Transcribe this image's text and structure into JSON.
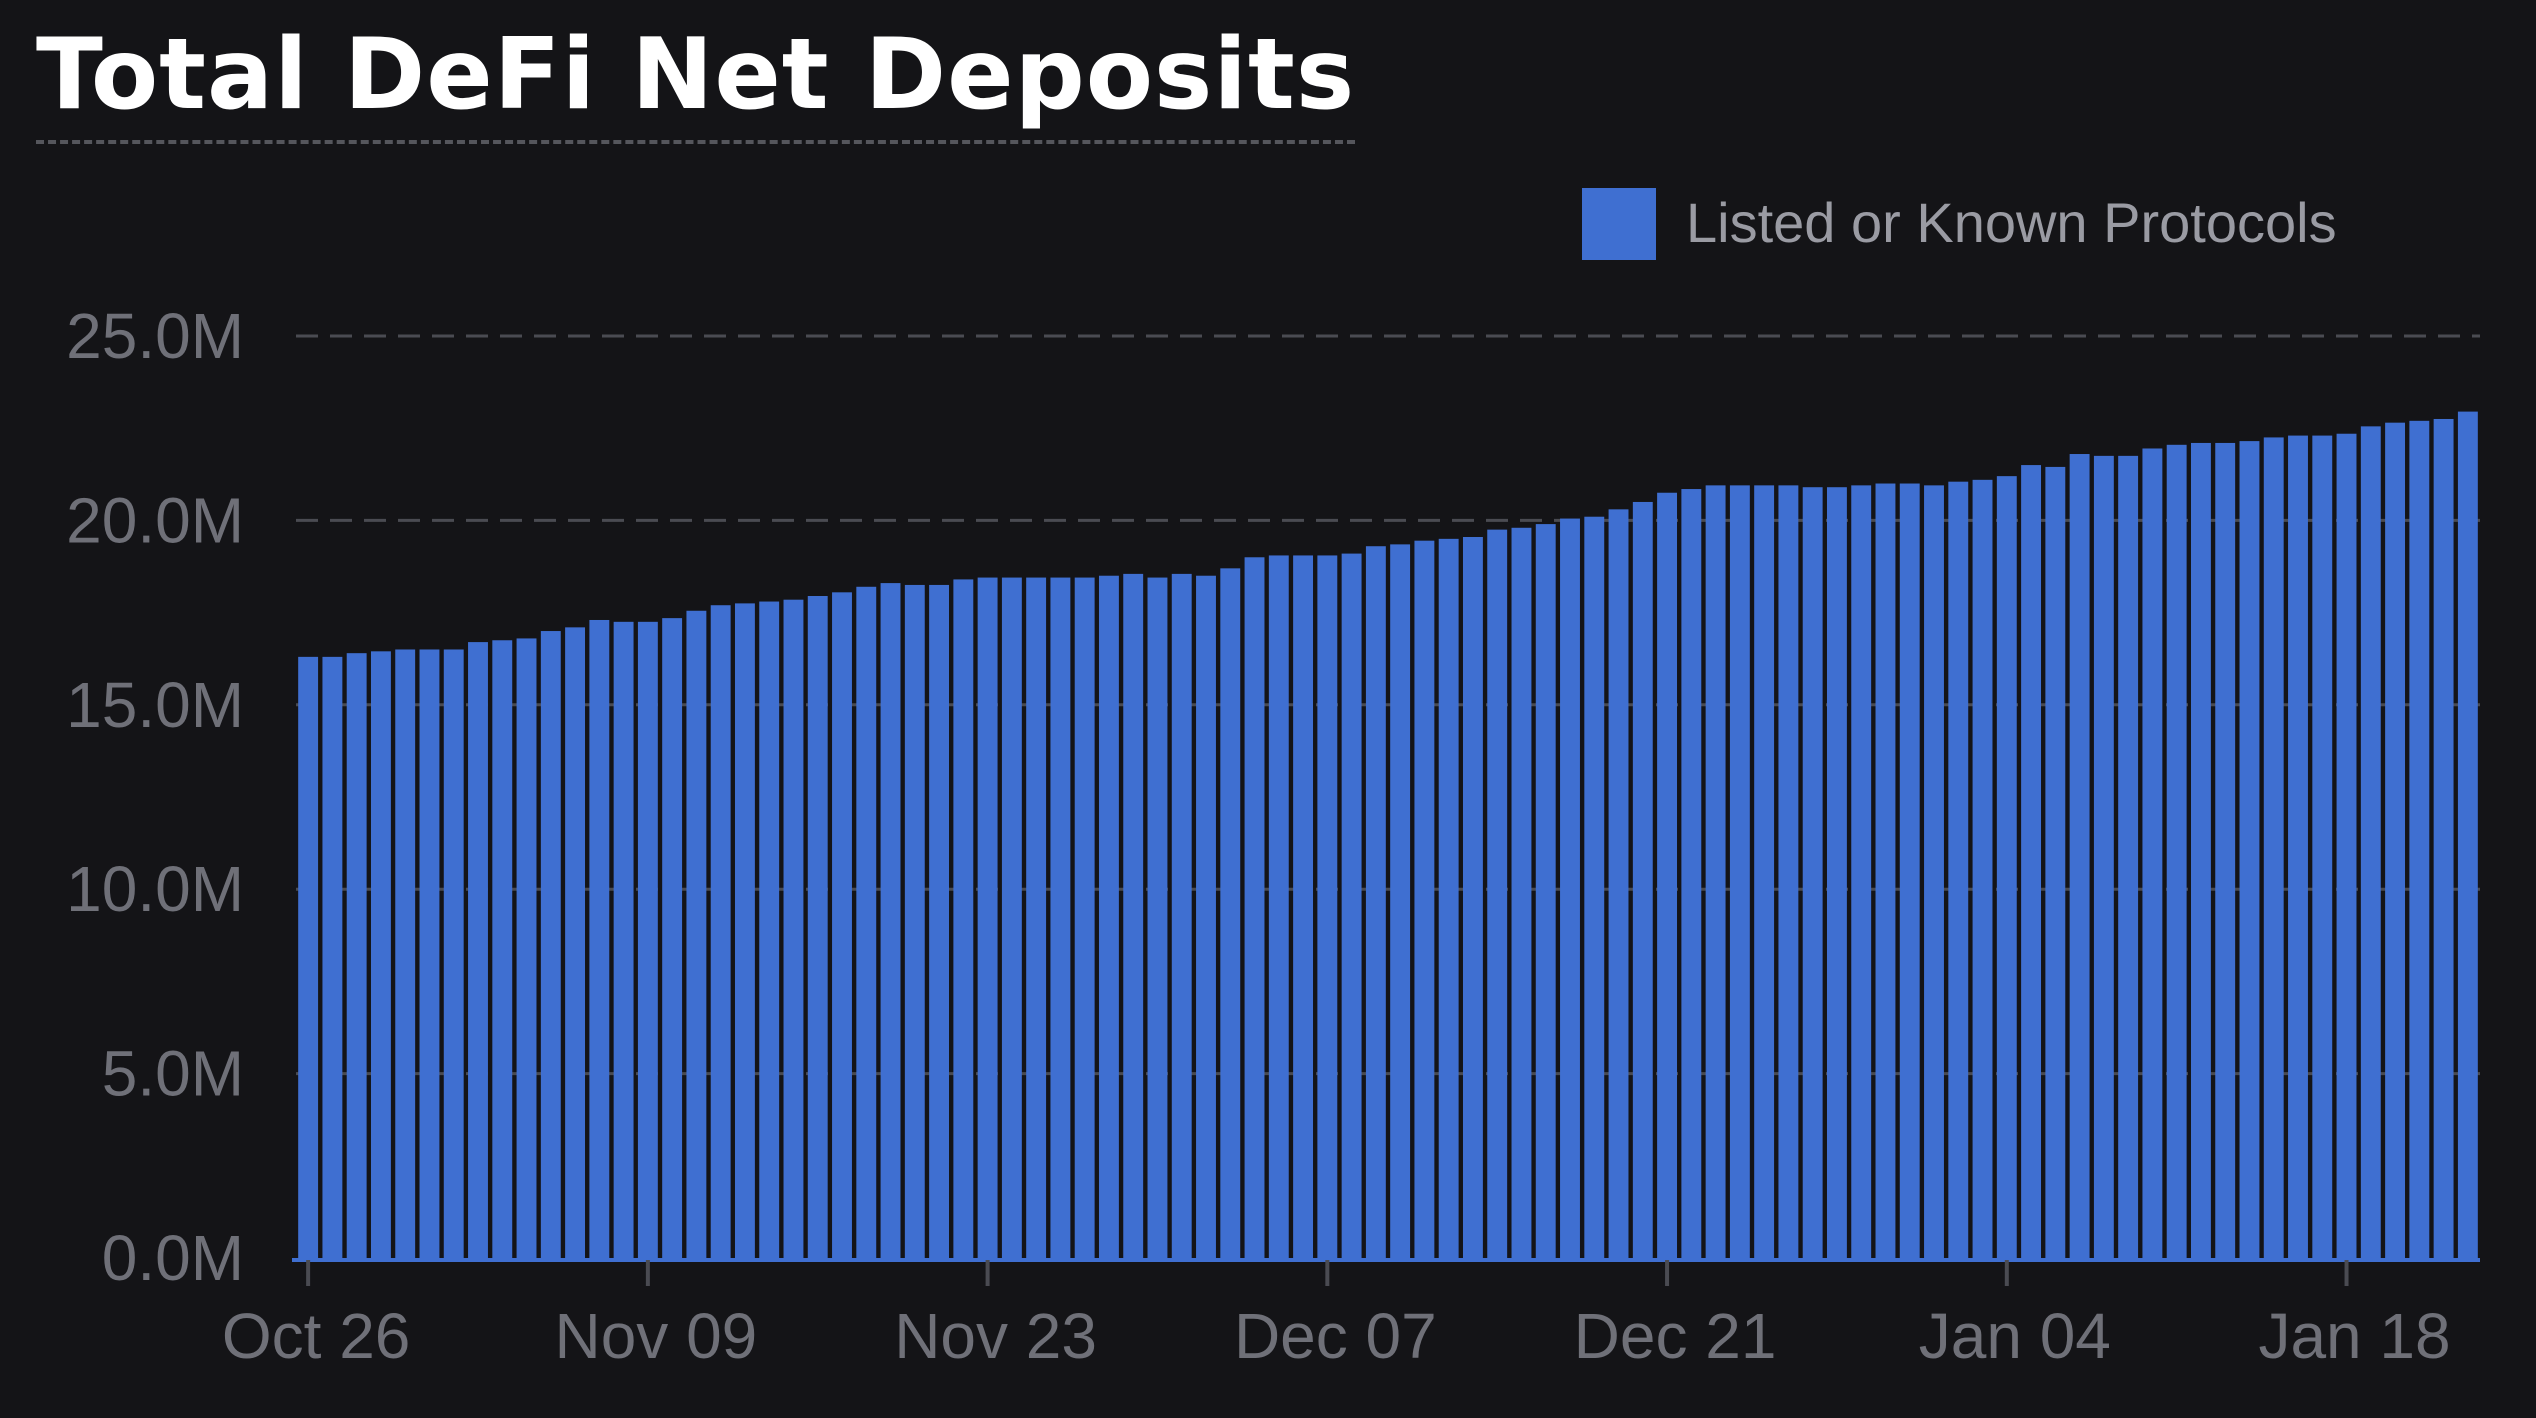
{
  "chart_data": {
    "type": "bar",
    "title": "Total DeFi Net Deposits",
    "xlabel": "",
    "ylabel": "",
    "ylim": [
      0,
      25000000
    ],
    "y_ticks": [
      {
        "value": 0,
        "label": "0.0M"
      },
      {
        "value": 5000000,
        "label": "5.0M"
      },
      {
        "value": 10000000,
        "label": "10.0M"
      },
      {
        "value": 15000000,
        "label": "15.0M"
      },
      {
        "value": 20000000,
        "label": "20.0M"
      },
      {
        "value": 25000000,
        "label": "25.0M"
      }
    ],
    "x_ticks": [
      {
        "index": 0,
        "label": "Oct 26"
      },
      {
        "index": 14,
        "label": "Nov 09"
      },
      {
        "index": 28,
        "label": "Nov 23"
      },
      {
        "index": 42,
        "label": "Dec 07"
      },
      {
        "index": 56,
        "label": "Dec 21"
      },
      {
        "index": 70,
        "label": "Jan 04"
      },
      {
        "index": 84,
        "label": "Jan 18"
      }
    ],
    "grid": "horizontal-dashed",
    "legend_position": "top-right",
    "series": [
      {
        "name": "Listed or Known Protocols",
        "color": "#3f6fd1",
        "values": [
          16.3,
          16.3,
          16.4,
          16.45,
          16.5,
          16.5,
          16.5,
          16.7,
          16.75,
          16.8,
          17.0,
          17.1,
          17.3,
          17.25,
          17.25,
          17.35,
          17.55,
          17.7,
          17.75,
          17.8,
          17.85,
          17.95,
          18.05,
          18.2,
          18.3,
          18.25,
          18.25,
          18.4,
          18.45,
          18.45,
          18.45,
          18.45,
          18.45,
          18.5,
          18.55,
          18.45,
          18.55,
          18.5,
          18.7,
          19.0,
          19.05,
          19.05,
          19.05,
          19.1,
          19.3,
          19.35,
          19.45,
          19.5,
          19.55,
          19.75,
          19.8,
          19.9,
          20.05,
          20.1,
          20.3,
          20.5,
          20.75,
          20.85,
          20.95,
          20.95,
          20.95,
          20.95,
          20.9,
          20.9,
          20.95,
          21.0,
          21.0,
          20.95,
          21.05,
          21.1,
          21.2,
          21.5,
          21.45,
          21.8,
          21.75,
          21.75,
          21.95,
          22.05,
          22.1,
          22.1,
          22.15,
          22.25,
          22.3,
          22.3,
          22.35,
          22.55,
          22.65,
          22.7,
          22.75,
          22.95
        ],
        "values_unit": "M"
      }
    ]
  }
}
